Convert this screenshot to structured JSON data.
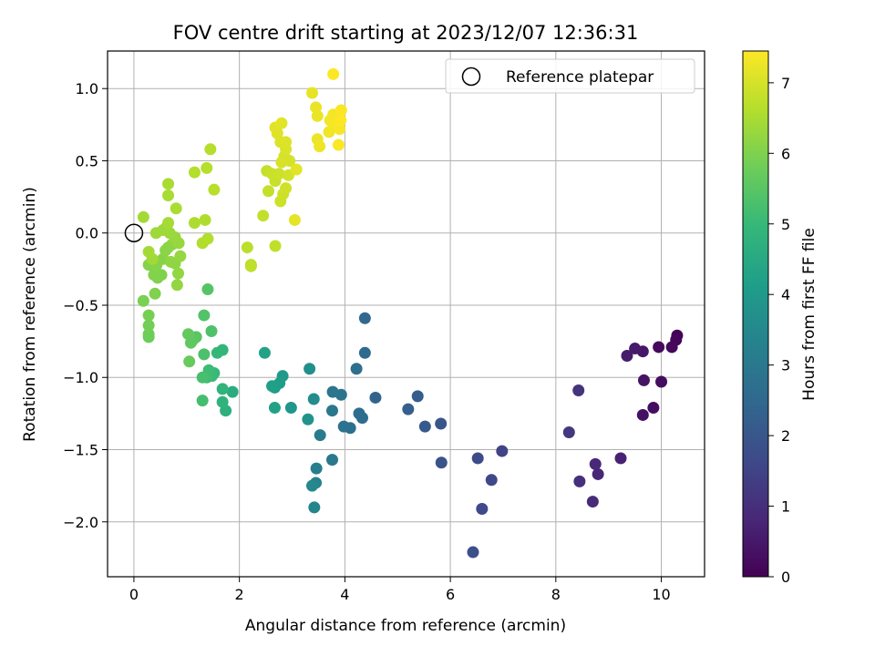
{
  "chart_data": {
    "type": "scatter",
    "title": "FOV centre drift starting at 2023/12/07 12:36:31",
    "xlabel": "Angular distance from reference (arcmin)",
    "ylabel": "Rotation from reference (arcmin)",
    "xlim": [
      -0.5,
      10.82
    ],
    "ylim": [
      -2.38,
      1.26
    ],
    "xticks": [
      0,
      2,
      4,
      6,
      8,
      10
    ],
    "xtick_labels": [
      "0",
      "2",
      "4",
      "6",
      "8",
      "10"
    ],
    "yticks": [
      -2.0,
      -1.5,
      -1.0,
      -0.5,
      0.0,
      0.5,
      1.0
    ],
    "ytick_labels": [
      "−2.0",
      "−1.5",
      "−1.0",
      "−0.5",
      "0.0",
      "0.5",
      "1.0"
    ],
    "grid": true,
    "legend": {
      "placement": "top-right",
      "entries": [
        "Reference platepar"
      ]
    },
    "reference_point": {
      "x": 0,
      "y": 0
    },
    "colorbar": {
      "label": "Hours from first FF file",
      "colormap": "viridis",
      "range": [
        0,
        7.45
      ],
      "ticks": [
        0,
        1,
        2,
        3,
        4,
        5,
        6,
        7
      ],
      "tick_labels": [
        "0",
        "1",
        "2",
        "3",
        "4",
        "5",
        "6",
        "7"
      ]
    },
    "points": [
      [
        10.3,
        -0.71,
        0.05
      ],
      [
        10.28,
        -0.74,
        0.1
      ],
      [
        10.2,
        -0.79,
        0.15
      ],
      [
        9.95,
        -0.79,
        0.2
      ],
      [
        10.0,
        -1.03,
        0.25
      ],
      [
        9.85,
        -1.21,
        0.3
      ],
      [
        9.65,
        -1.26,
        0.35
      ],
      [
        9.67,
        -1.02,
        0.4
      ],
      [
        9.65,
        -0.82,
        0.45
      ],
      [
        9.5,
        -0.8,
        0.5
      ],
      [
        9.35,
        -0.85,
        0.55
      ],
      [
        9.23,
        -1.56,
        0.7
      ],
      [
        8.8,
        -1.67,
        0.8
      ],
      [
        8.75,
        -1.6,
        0.85
      ],
      [
        8.7,
        -1.86,
        0.9
      ],
      [
        8.45,
        -1.72,
        1.0
      ],
      [
        8.43,
        -1.09,
        1.1
      ],
      [
        8.25,
        -1.38,
        1.2
      ],
      [
        6.98,
        -1.51,
        1.5
      ],
      [
        6.78,
        -1.71,
        1.6
      ],
      [
        6.6,
        -1.91,
        1.65
      ],
      [
        6.52,
        -1.56,
        1.7
      ],
      [
        6.43,
        -2.21,
        1.8
      ],
      [
        5.83,
        -1.59,
        1.9
      ],
      [
        5.82,
        -1.32,
        2.0
      ],
      [
        5.52,
        -1.34,
        2.1
      ],
      [
        5.38,
        -1.13,
        2.2
      ],
      [
        5.2,
        -1.22,
        2.25
      ],
      [
        4.58,
        -1.14,
        2.4
      ],
      [
        4.38,
        -0.59,
        2.5
      ],
      [
        4.38,
        -0.83,
        2.55
      ],
      [
        4.33,
        -1.28,
        2.6
      ],
      [
        4.27,
        -1.25,
        2.65
      ],
      [
        4.22,
        -0.94,
        2.7
      ],
      [
        4.1,
        -1.35,
        2.75
      ],
      [
        3.98,
        -1.34,
        2.8
      ],
      [
        3.93,
        -1.12,
        2.85
      ],
      [
        3.77,
        -1.1,
        2.9
      ],
      [
        3.76,
        -1.23,
        2.95
      ],
      [
        3.76,
        -1.57,
        3.0
      ],
      [
        3.53,
        -1.4,
        3.1
      ],
      [
        3.46,
        -1.63,
        3.2
      ],
      [
        3.45,
        -1.73,
        3.3
      ],
      [
        3.42,
        -1.9,
        3.4
      ],
      [
        3.38,
        -1.75,
        3.5
      ],
      [
        3.41,
        -1.15,
        3.6
      ],
      [
        3.33,
        -0.94,
        3.7
      ],
      [
        3.3,
        -1.29,
        3.8
      ],
      [
        2.98,
        -1.21,
        3.9
      ],
      [
        2.82,
        -0.99,
        4.0
      ],
      [
        2.76,
        -1.04,
        4.1
      ],
      [
        2.67,
        -1.07,
        4.15
      ],
      [
        2.62,
        -1.06,
        4.2
      ],
      [
        2.67,
        -1.21,
        4.25
      ],
      [
        2.48,
        -0.83,
        4.3
      ],
      [
        1.87,
        -1.1,
        4.6
      ],
      [
        1.74,
        -1.23,
        4.7
      ],
      [
        1.68,
        -1.17,
        4.8
      ],
      [
        1.68,
        -1.08,
        4.85
      ],
      [
        1.68,
        -0.81,
        4.9
      ],
      [
        1.58,
        -0.83,
        4.95
      ],
      [
        1.52,
        -0.97,
        5.0
      ],
      [
        1.48,
        -0.99,
        5.05
      ],
      [
        1.42,
        -0.95,
        5.1
      ],
      [
        1.38,
        -1.0,
        5.15
      ],
      [
        1.3,
        -1.16,
        5.2
      ],
      [
        1.3,
        -1.0,
        5.25
      ],
      [
        1.33,
        -0.84,
        5.3
      ],
      [
        1.47,
        -0.68,
        5.35
      ],
      [
        1.33,
        -0.57,
        5.4
      ],
      [
        1.4,
        -0.39,
        5.45
      ],
      [
        1.18,
        -0.72,
        5.5
      ],
      [
        1.12,
        -0.74,
        5.55
      ],
      [
        1.08,
        -0.76,
        5.6
      ],
      [
        1.03,
        -0.7,
        5.65
      ],
      [
        1.05,
        -0.89,
        5.7
      ],
      [
        0.28,
        -0.72,
        5.75
      ],
      [
        0.28,
        -0.7,
        5.8
      ],
      [
        0.28,
        -0.64,
        5.85
      ],
      [
        0.28,
        -0.57,
        5.9
      ],
      [
        0.18,
        -0.47,
        5.95
      ],
      [
        0.4,
        -0.42,
        6.0
      ],
      [
        0.45,
        -0.31,
        6.0
      ],
      [
        0.52,
        -0.29,
        6.02
      ],
      [
        0.38,
        -0.29,
        6.04
      ],
      [
        0.28,
        -0.22,
        6.06
      ],
      [
        0.43,
        -0.22,
        6.08
      ],
      [
        0.55,
        -0.18,
        6.1
      ],
      [
        0.6,
        -0.12,
        6.12
      ],
      [
        0.65,
        -0.1,
        6.14
      ],
      [
        0.72,
        -0.08,
        6.16
      ],
      [
        0.78,
        -0.21,
        6.18
      ],
      [
        0.7,
        -0.2,
        6.2
      ],
      [
        0.84,
        -0.28,
        6.22
      ],
      [
        0.82,
        -0.36,
        6.24
      ],
      [
        0.88,
        -0.16,
        6.26
      ],
      [
        0.85,
        -0.07,
        6.28
      ],
      [
        0.78,
        -0.03,
        6.3
      ],
      [
        0.68,
        0.0,
        6.32
      ],
      [
        0.62,
        0.04,
        6.34
      ],
      [
        0.55,
        0.02,
        6.36
      ],
      [
        0.42,
        0.0,
        6.38
      ],
      [
        0.35,
        -0.18,
        6.4
      ],
      [
        0.28,
        -0.13,
        6.42
      ],
      [
        0.18,
        0.11,
        6.44
      ],
      [
        0.65,
        0.07,
        6.46
      ],
      [
        0.65,
        0.26,
        6.48
      ],
      [
        0.65,
        0.34,
        6.5
      ],
      [
        0.8,
        0.17,
        6.52
      ],
      [
        1.15,
        0.07,
        6.54
      ],
      [
        1.35,
        0.09,
        6.56
      ],
      [
        1.3,
        -0.07,
        6.58
      ],
      [
        1.4,
        -0.04,
        6.6
      ],
      [
        1.15,
        0.42,
        6.62
      ],
      [
        1.38,
        0.45,
        6.64
      ],
      [
        1.45,
        0.58,
        6.66
      ],
      [
        1.52,
        0.3,
        6.68
      ],
      [
        2.15,
        -0.1,
        6.7
      ],
      [
        2.22,
        -0.22,
        6.72
      ],
      [
        2.22,
        -0.23,
        6.74
      ],
      [
        2.68,
        -0.09,
        6.76
      ],
      [
        2.45,
        0.12,
        6.78
      ],
      [
        2.55,
        0.29,
        6.8
      ],
      [
        2.52,
        0.43,
        6.82
      ],
      [
        2.68,
        0.36,
        6.84
      ],
      [
        2.62,
        0.41,
        6.86
      ],
      [
        2.75,
        0.41,
        6.88
      ],
      [
        2.78,
        0.22,
        6.9
      ],
      [
        2.83,
        0.27,
        6.92
      ],
      [
        2.88,
        0.31,
        6.94
      ],
      [
        2.93,
        0.4,
        6.96
      ],
      [
        2.95,
        0.5,
        6.98
      ],
      [
        2.85,
        0.53,
        7.0
      ],
      [
        2.8,
        0.49,
        7.02
      ],
      [
        2.88,
        0.58,
        7.04
      ],
      [
        2.78,
        0.63,
        7.06
      ],
      [
        2.88,
        0.63,
        7.08
      ],
      [
        2.72,
        0.69,
        7.1
      ],
      [
        2.68,
        0.73,
        7.12
      ],
      [
        2.8,
        0.76,
        7.14
      ],
      [
        3.08,
        0.44,
        7.16
      ],
      [
        3.05,
        0.09,
        7.18
      ],
      [
        3.38,
        0.97,
        7.2
      ],
      [
        3.45,
        0.87,
        7.22
      ],
      [
        3.48,
        0.81,
        7.24
      ],
      [
        3.48,
        0.65,
        7.26
      ],
      [
        3.52,
        0.6,
        7.28
      ],
      [
        3.7,
        0.7,
        7.3
      ],
      [
        3.72,
        0.78,
        7.32
      ],
      [
        3.78,
        0.82,
        7.34
      ],
      [
        3.83,
        0.75,
        7.36
      ],
      [
        3.9,
        0.72,
        7.38
      ],
      [
        3.93,
        0.85,
        7.4
      ],
      [
        3.88,
        0.61,
        7.42
      ],
      [
        3.78,
        1.1,
        7.44
      ],
      [
        3.92,
        0.78,
        7.45
      ]
    ]
  }
}
